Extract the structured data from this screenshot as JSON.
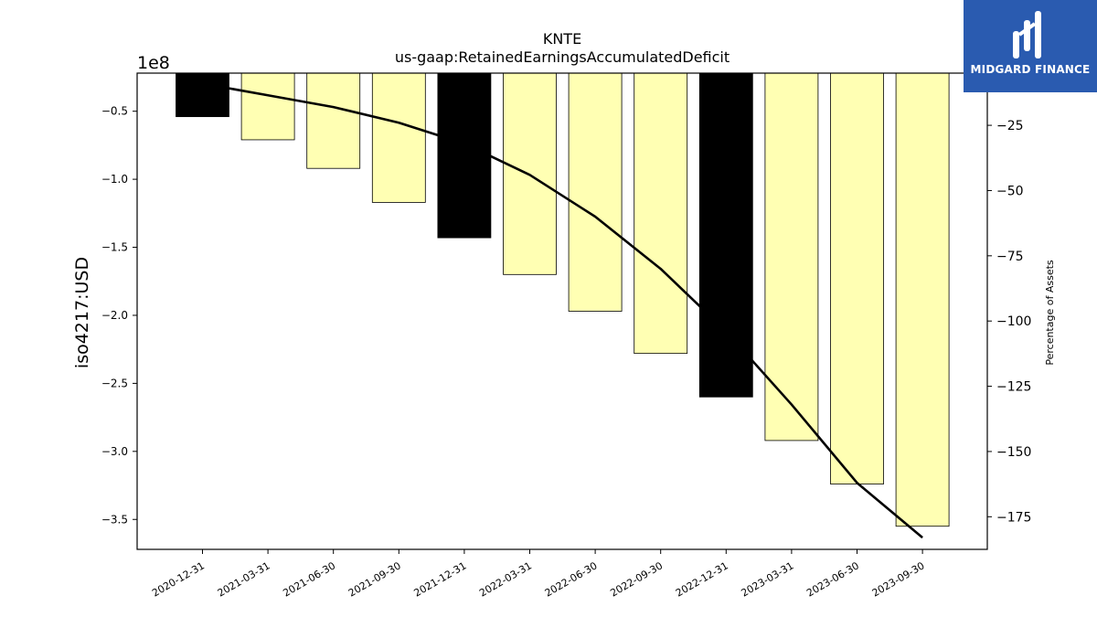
{
  "chart_data": {
    "type": "bar",
    "title": "KNTE",
    "subtitle": "us-gaap:RetainedEarningsAccumulatedDeficit",
    "ylabel": "iso4217:USD",
    "y2label": "Percentage of Assets",
    "y_scale_label": "1e8",
    "categories": [
      "2020-12-31",
      "2021-03-31",
      "2021-06-30",
      "2021-09-30",
      "2021-12-31",
      "2022-03-31",
      "2022-06-30",
      "2022-09-30",
      "2022-12-31",
      "2023-03-31",
      "2023-06-30",
      "2023-09-30"
    ],
    "values": [
      -0.54,
      -0.71,
      -0.92,
      -1.17,
      -1.43,
      -1.7,
      -1.97,
      -2.28,
      -2.6,
      -2.92,
      -3.24,
      -3.55
    ],
    "value_unit": "1e8 USD",
    "bar_colors": [
      "#000000",
      "#ffffb3",
      "#ffffb3",
      "#ffffb3",
      "#000000",
      "#ffffb3",
      "#ffffb3",
      "#ffffb3",
      "#000000",
      "#ffffb3",
      "#ffffb3",
      "#ffffb3"
    ],
    "ylim": [
      -3.72,
      -0.22
    ],
    "yticks": [
      -0.5,
      -1.0,
      -1.5,
      -2.0,
      -2.5,
      -3.0,
      -3.5
    ],
    "ytick_labels": [
      "−0.5",
      "−1.0",
      "−1.5",
      "−2.0",
      "−2.5",
      "−3.0",
      "−3.5"
    ],
    "series": [
      {
        "name": "Percentage of Assets",
        "axis": "right",
        "color": "#000000",
        "values": [
          -9,
          -13.5,
          -18,
          -24,
          -32,
          -44,
          -60,
          -80,
          -104,
          -132,
          -162,
          -183
        ]
      }
    ],
    "y2lim": [
      -187.5,
      -5
    ],
    "y2ticks": [
      -25,
      -50,
      -75,
      -100,
      -125,
      -150,
      -175
    ],
    "y2tick_labels": [
      "−25",
      "−50",
      "−75",
      "−100",
      "−125",
      "−150",
      "−175"
    ],
    "grid": false
  },
  "logo": {
    "text": "MIDGARD FINANCE",
    "bg": "#2a5bb0"
  }
}
